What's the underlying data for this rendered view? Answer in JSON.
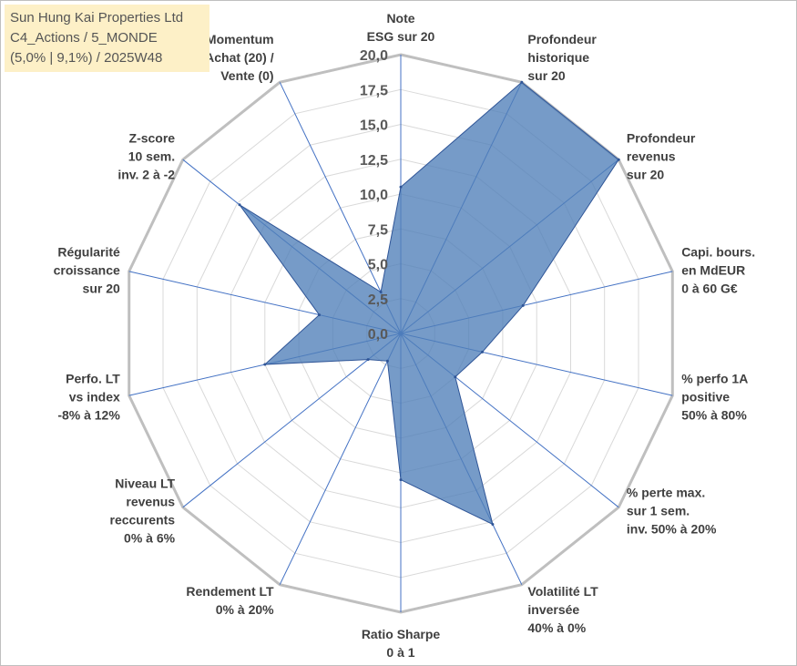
{
  "chart_data": {
    "type": "radar",
    "title_lines": [
      "Sun Hung Kai Properties Ltd",
      "C4_Actions / 5_MONDE",
      "(5,0% | 9,1%) / 2025W48"
    ],
    "rmin": 0,
    "rmax": 20,
    "tick_labels": [
      "0,0",
      "2,5",
      "5,0",
      "7,5",
      "10,0",
      "12,5",
      "15,0",
      "17,5",
      "20,0"
    ],
    "colors": {
      "grid": "#bfbfbf",
      "inner_grid": "#d9d9d9",
      "spoke": "#4472c4",
      "fill": "#4f7fb8",
      "stroke": "#2f5597"
    },
    "axes": [
      {
        "lines": [
          "Note",
          "ESG sur 20"
        ],
        "value": 10.5
      },
      {
        "lines": [
          "Profondeur",
          "historique",
          "sur 20"
        ],
        "value": 20.0
      },
      {
        "lines": [
          "Profondeur",
          "revenus",
          "sur 20"
        ],
        "value": 20.0
      },
      {
        "lines": [
          "Capi. bours.",
          "en MdEUR",
          "0 à 60 G€"
        ],
        "value": 9.0
      },
      {
        "lines": [
          "% perfo 1A",
          "positive",
          "50% à 80%"
        ],
        "value": 6.0
      },
      {
        "lines": [
          "% perte max.",
          "sur 1 sem.",
          "inv. 50% à 20%"
        ],
        "value": 5.0
      },
      {
        "lines": [
          "Volatilité LT",
          "inversée",
          "40% à 0%"
        ],
        "value": 15.2
      },
      {
        "lines": [
          "Ratio Sharpe",
          "0 à 1"
        ],
        "value": 10.5
      },
      {
        "lines": [
          "Rendement LT",
          "0% à 20%"
        ],
        "value": 2.2
      },
      {
        "lines": [
          "Niveau LT",
          "revenus",
          "reccurents",
          "0% à 6%"
        ],
        "value": 3.0
      },
      {
        "lines": [
          "Perfo. LT",
          "vs index",
          "-8% à 12%"
        ],
        "value": 10.0
      },
      {
        "lines": [
          "Régularité",
          "croissance",
          "sur 20"
        ],
        "value": 6.0
      },
      {
        "lines": [
          "Z-score",
          "10 sem.",
          "inv. 2 à -2"
        ],
        "value": 14.8
      },
      {
        "lines": [
          "Momentum",
          "Achat (20) /",
          "Vente (0)"
        ],
        "value": 3.3
      }
    ]
  }
}
